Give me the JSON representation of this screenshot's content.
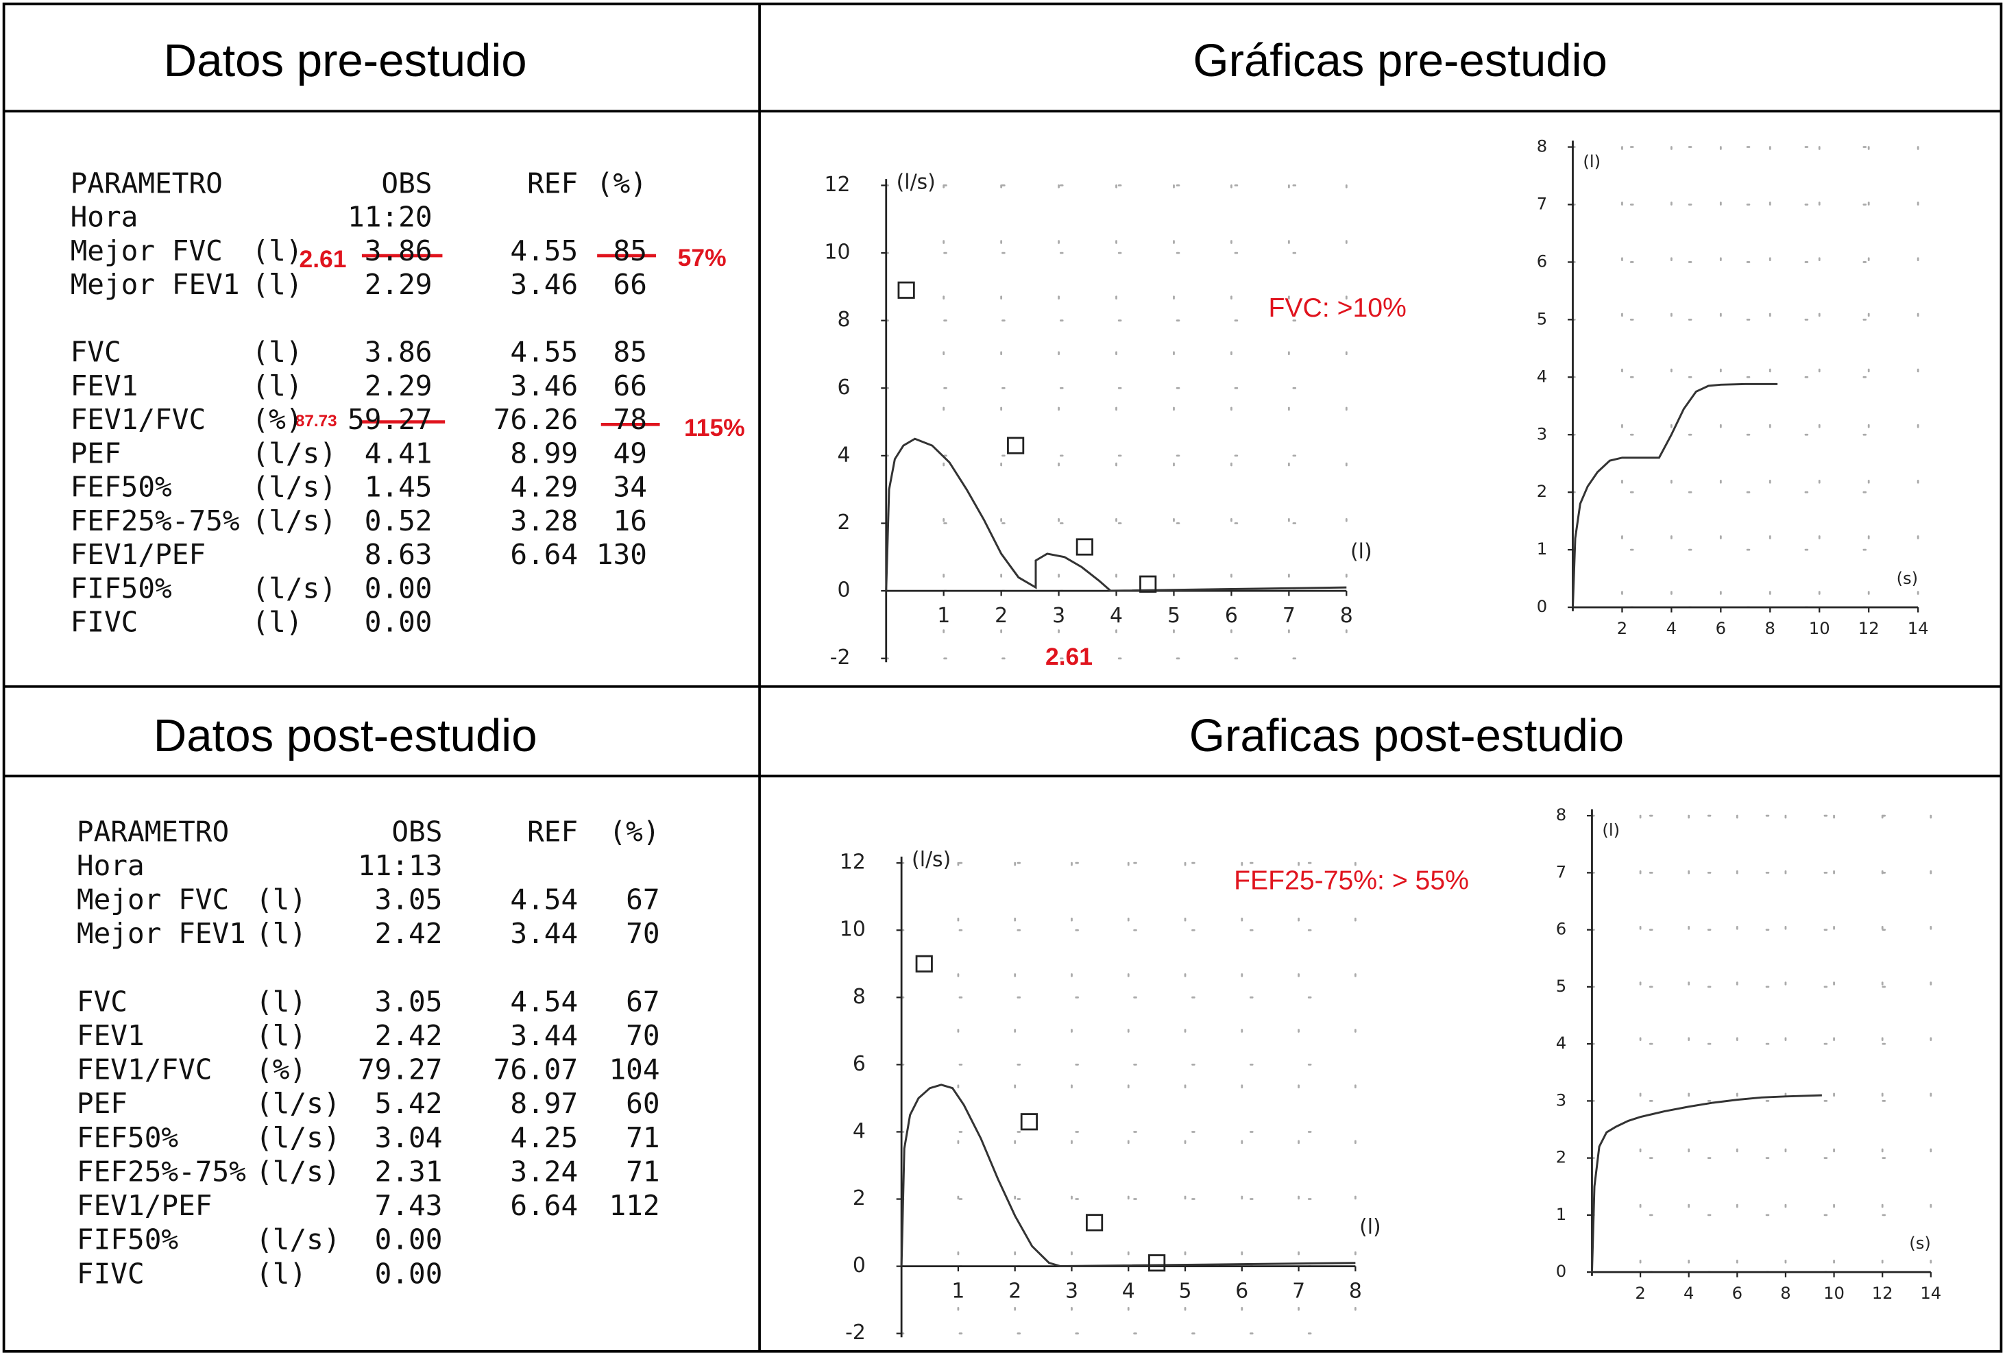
{
  "pre": {
    "data_title": "Datos pre-estudio",
    "chart_title": "Gráficas pre-estudio",
    "table": {
      "header": [
        "PARAMETRO",
        null,
        "OBS",
        "REF",
        "(%)"
      ],
      "rows": [
        [
          "Hora",
          null,
          "11:20",
          null,
          null
        ],
        [
          "Mejor FVC",
          "(l)",
          "3.86",
          "4.55",
          "85"
        ],
        [
          "Mejor FEV1",
          "(l)",
          "2.29",
          "3.46",
          "66"
        ],
        [
          "FVC",
          "(l)",
          "3.86",
          "4.55",
          "85"
        ],
        [
          "FEV1",
          "(l)",
          "2.29",
          "3.46",
          "66"
        ],
        [
          "FEV1/FVC",
          "(%)",
          "59.27",
          "76.26",
          "78"
        ],
        [
          "PEF",
          "(l/s)",
          "4.41",
          "8.99",
          "49"
        ],
        [
          "FEF50%",
          "(l/s)",
          "1.45",
          "4.29",
          "34"
        ],
        [
          "FEF25%-75%",
          "(l/s)",
          "0.52",
          "3.28",
          "16"
        ],
        [
          "FEV1/PEF",
          null,
          "8.63",
          "6.64",
          "130"
        ],
        [
          "FIF50%",
          "(l/s)",
          "0.00",
          null,
          null
        ],
        [
          "FIVC",
          "(l)",
          "0.00",
          null,
          null
        ]
      ]
    },
    "corrections": {
      "fvc": "2.61",
      "fvc_pct": "57%",
      "ratio": "87.73",
      "ratio_pct": "115%"
    },
    "flow_volume": {
      "x_label": "(l)",
      "y_label": "(l/s)",
      "annotation": "FVC:  >10%",
      "fvc_note": "2.61",
      "xlim": [
        0,
        8
      ],
      "ylim": [
        -2,
        12
      ],
      "xticks": [
        1,
        2,
        3,
        4,
        5,
        6,
        7,
        8
      ],
      "yticks": [
        -2,
        0,
        2,
        4,
        6,
        8,
        10,
        12
      ],
      "grid": true,
      "markers": {
        "x": [
          0.35,
          2.25,
          3.45,
          4.55
        ],
        "y": [
          8.9,
          4.3,
          1.3,
          0.2
        ]
      },
      "curve": {
        "x": [
          0,
          0.05,
          0.15,
          0.3,
          0.5,
          0.8,
          1.1,
          1.4,
          1.7,
          2.0,
          2.3,
          2.6,
          2.6,
          2.8,
          3.1,
          3.4,
          3.7,
          3.9,
          8
        ],
        "y": [
          0,
          3.0,
          3.9,
          4.3,
          4.5,
          4.3,
          3.8,
          3.0,
          2.1,
          1.1,
          0.4,
          0.1,
          0.9,
          1.1,
          1.0,
          0.7,
          0.3,
          0,
          0.1
        ]
      }
    },
    "volume_time": {
      "x_label": "(s)",
      "y_label": "(l)",
      "xlim": [
        0,
        14
      ],
      "ylim": [
        0,
        8
      ],
      "xticks": [
        2,
        4,
        6,
        8,
        10,
        12,
        14
      ],
      "yticks": [
        0,
        1,
        2,
        3,
        4,
        5,
        6,
        7,
        8
      ],
      "grid": true,
      "curve": {
        "x": [
          0,
          0.1,
          0.3,
          0.6,
          1,
          1.5,
          2,
          2.5,
          3,
          3.5,
          4,
          4.5,
          5,
          5.5,
          6,
          7,
          8.3
        ],
        "y": [
          0,
          1.2,
          1.8,
          2.1,
          2.35,
          2.55,
          2.6,
          2.6,
          2.6,
          2.6,
          3.0,
          3.45,
          3.75,
          3.85,
          3.87,
          3.88,
          3.88
        ]
      }
    }
  },
  "post": {
    "data_title": "Datos post-estudio",
    "chart_title": "Graficas post-estudio",
    "table": {
      "header": [
        "PARAMETRO",
        null,
        "OBS",
        "REF",
        "(%)"
      ],
      "rows": [
        [
          "Hora",
          null,
          "11:13",
          null,
          null
        ],
        [
          "Mejor FVC",
          "(l)",
          "3.05",
          "4.54",
          "67"
        ],
        [
          "Mejor FEV1",
          "(l)",
          "2.42",
          "3.44",
          "70"
        ],
        [
          "FVC",
          "(l)",
          "3.05",
          "4.54",
          "67"
        ],
        [
          "FEV1",
          "(l)",
          "2.42",
          "3.44",
          "70"
        ],
        [
          "FEV1/FVC",
          "(%)",
          "79.27",
          "76.07",
          "104"
        ],
        [
          "PEF",
          "(l/s)",
          "5.42",
          "8.97",
          "60"
        ],
        [
          "FEF50%",
          "(l/s)",
          "3.04",
          "4.25",
          "71"
        ],
        [
          "FEF25%-75%",
          "(l/s)",
          "2.31",
          "3.24",
          "71"
        ],
        [
          "FEV1/PEF",
          null,
          "7.43",
          "6.64",
          "112"
        ],
        [
          "FIF50%",
          "(l/s)",
          "0.00",
          null,
          null
        ],
        [
          "FIVC",
          "(l)",
          "0.00",
          null,
          null
        ]
      ]
    },
    "flow_volume": {
      "x_label": "(l)",
      "y_label": "(l/s)",
      "annotation": "FEF25-75%: > 55%",
      "xlim": [
        0,
        8
      ],
      "ylim": [
        -2,
        12
      ],
      "xticks": [
        1,
        2,
        3,
        4,
        5,
        6,
        7,
        8
      ],
      "yticks": [
        -2,
        0,
        2,
        4,
        6,
        8,
        10,
        12
      ],
      "grid": true,
      "markers": {
        "x": [
          0.4,
          2.25,
          3.4,
          4.5
        ],
        "y": [
          9.0,
          4.3,
          1.3,
          0.1
        ]
      },
      "curve": {
        "x": [
          0,
          0.05,
          0.15,
          0.3,
          0.5,
          0.7,
          0.9,
          1.1,
          1.4,
          1.7,
          2.0,
          2.3,
          2.6,
          2.8,
          8
        ],
        "y": [
          0,
          3.5,
          4.5,
          5.0,
          5.3,
          5.4,
          5.3,
          4.8,
          3.8,
          2.6,
          1.5,
          0.6,
          0.1,
          0,
          0.1
        ]
      }
    },
    "volume_time": {
      "x_label": "(s)",
      "y_label": "(l)",
      "xlim": [
        0,
        14
      ],
      "ylim": [
        0,
        8
      ],
      "xticks": [
        2,
        4,
        6,
        8,
        10,
        12,
        14
      ],
      "yticks": [
        0,
        1,
        2,
        3,
        4,
        5,
        6,
        7,
        8
      ],
      "grid": true,
      "curve": {
        "x": [
          0,
          0.1,
          0.3,
          0.6,
          1,
          1.5,
          2,
          3,
          4,
          5,
          6,
          7,
          8,
          9.5
        ],
        "y": [
          0,
          1.5,
          2.2,
          2.45,
          2.55,
          2.65,
          2.72,
          2.82,
          2.9,
          2.97,
          3.02,
          3.06,
          3.08,
          3.1
        ]
      }
    }
  }
}
